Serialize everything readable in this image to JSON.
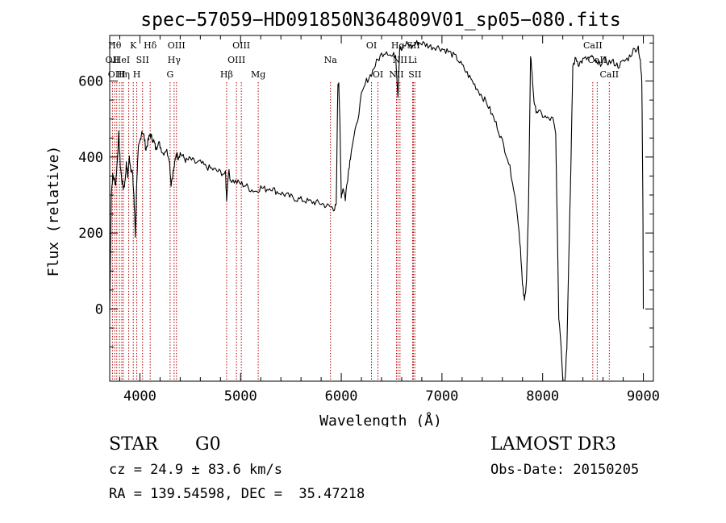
{
  "chart_data": {
    "type": "line",
    "title": "spec−57059−HD091850N364809V01_sp05−080.fits",
    "xlabel": "Wavelength (Å)",
    "ylabel": "Flux (relative)",
    "xlim": [
      3700,
      9100
    ],
    "ylim": [
      -190,
      720
    ],
    "xticks": [
      4000,
      5000,
      6000,
      7000,
      8000,
      9000
    ],
    "yticks": [
      0,
      200,
      400,
      600
    ],
    "line_color": "#000000",
    "marker_color": "#b00000",
    "series": [
      {
        "x": [
          3700,
          3715,
          3730,
          3745,
          3760,
          3775,
          3790,
          3805,
          3820,
          3835,
          3850,
          3865,
          3880,
          3895,
          3910,
          3925,
          3940,
          3955,
          3970,
          3985,
          4000,
          4020,
          4040,
          4060,
          4080,
          4100,
          4120,
          4140,
          4160,
          4180,
          4200,
          4230,
          4260,
          4290,
          4310,
          4330,
          4345,
          4360,
          4380,
          4400,
          4430,
          4460,
          4500,
          4550,
          4600,
          4650,
          4700,
          4750,
          4800,
          4850,
          4861,
          4880,
          4900,
          4950,
          5000,
          5050,
          5100,
          5150,
          5200,
          5250,
          5300,
          5350,
          5400,
          5450,
          5500,
          5550,
          5600,
          5650,
          5700,
          5750,
          5800,
          5850,
          5900,
          5930,
          5950,
          5965,
          5975,
          5985,
          6000,
          6020,
          6040,
          6060,
          6080,
          6100,
          6150,
          6200,
          6250,
          6300,
          6350,
          6400,
          6450,
          6500,
          6540,
          6563,
          6580,
          6600,
          6650,
          6700,
          6750,
          6800,
          6850,
          6900,
          6950,
          7000,
          7050,
          7100,
          7150,
          7200,
          7250,
          7300,
          7350,
          7400,
          7450,
          7500,
          7550,
          7600,
          7650,
          7700,
          7750,
          7780,
          7800,
          7820,
          7840,
          7860,
          7880,
          7900,
          7920,
          7950,
          8000,
          8050,
          8100,
          8130,
          8160,
          8180,
          8200,
          8220,
          8240,
          8260,
          8280,
          8300,
          8330,
          8360,
          8400,
          8450,
          8500,
          8550,
          8600,
          8650,
          8700,
          8750,
          8800,
          8850,
          8900,
          8950,
          8970,
          8985,
          8995,
          9000
        ],
        "y": [
          -10,
          300,
          350,
          340,
          330,
          390,
          460,
          380,
          340,
          320,
          330,
          380,
          350,
          400,
          370,
          360,
          300,
          190,
          350,
          420,
          440,
          470,
          455,
          420,
          440,
          460,
          450,
          440,
          420,
          440,
          430,
          410,
          420,
          400,
          330,
          360,
          380,
          410,
          400,
          410,
          400,
          390,
          395,
          385,
          385,
          375,
          370,
          365,
          360,
          355,
          290,
          365,
          340,
          335,
          330,
          325,
          315,
          310,
          320,
          315,
          320,
          310,
          305,
          300,
          295,
          290,
          288,
          285,
          282,
          280,
          278,
          272,
          268,
          265,
          270,
          580,
          600,
          500,
          300,
          320,
          290,
          340,
          380,
          420,
          480,
          560,
          600,
          620,
          650,
          670,
          680,
          665,
          670,
          560,
          690,
          680,
          700,
          690,
          700,
          700,
          695,
          690,
          690,
          685,
          680,
          670,
          660,
          640,
          620,
          600,
          580,
          560,
          540,
          510,
          480,
          440,
          400,
          340,
          250,
          160,
          60,
          20,
          80,
          270,
          670,
          600,
          530,
          520,
          510,
          500,
          500,
          460,
          -20,
          -80,
          -180,
          -200,
          -100,
          140,
          370,
          640,
          660,
          645,
          655,
          660,
          660,
          640,
          655,
          650,
          650,
          640,
          650,
          660,
          680,
          690,
          650,
          600,
          300,
          0
        ],
        "name": ""
      }
    ],
    "lines": [
      {
        "x": 3727,
        "label": "OII",
        "row": 1
      },
      {
        "x": 3750,
        "label": "Hθ",
        "row": 0
      },
      {
        "x": 3770,
        "label": "OIII",
        "row": 2
      },
      {
        "x": 3797,
        "label": "",
        "row": 0
      },
      {
        "x": 3820,
        "label": "HeI",
        "row": 1
      },
      {
        "x": 3835,
        "label": "Hη",
        "row": 2
      },
      {
        "x": 3889,
        "label": "",
        "row": 0
      },
      {
        "x": 3934,
        "label": "K",
        "row": 0
      },
      {
        "x": 3969,
        "label": "H",
        "row": 2
      },
      {
        "x": 4026,
        "label": "SII",
        "row": 1
      },
      {
        "x": 4102,
        "label": "Hδ",
        "row": 0
      },
      {
        "x": 4300,
        "label": "G",
        "row": 2
      },
      {
        "x": 4340,
        "label": "Hγ",
        "row": 1
      },
      {
        "x": 4363,
        "label": "OIII",
        "row": 0
      },
      {
        "x": 4861,
        "label": "Hβ",
        "row": 2
      },
      {
        "x": 4959,
        "label": "OIII",
        "row": 1
      },
      {
        "x": 5007,
        "label": "OIII",
        "row": 0
      },
      {
        "x": 5175,
        "label": "Mg",
        "row": 2
      },
      {
        "x": 5893,
        "label": "Na",
        "row": 1
      },
      {
        "x": 6300,
        "label": "OI",
        "row": 0
      },
      {
        "x": 6364,
        "label": "OI",
        "row": 2
      },
      {
        "x": 6548,
        "label": "NII",
        "row": 2
      },
      {
        "x": 6563,
        "label": "Hα",
        "row": 0
      },
      {
        "x": 6583,
        "label": "NII",
        "row": 1
      },
      {
        "x": 6708,
        "label": "Li",
        "row": 1
      },
      {
        "x": 6717,
        "label": "SII",
        "row": 0
      },
      {
        "x": 6731,
        "label": "SII",
        "row": 2
      },
      {
        "x": 8498,
        "label": "CaII",
        "row": 0
      },
      {
        "x": 8542,
        "label": "CaII",
        "row": 1
      },
      {
        "x": 8662,
        "label": "CaII",
        "row": 2
      }
    ]
  },
  "info": {
    "class_label": "STAR",
    "subclass": "G0",
    "survey": "LAMOST DR3",
    "cz": "cz = 24.9 ± 83.6 km/s",
    "obs_date": "Obs-Date: 20150205",
    "radec": "RA = 139.54598, DEC =  35.47218"
  }
}
